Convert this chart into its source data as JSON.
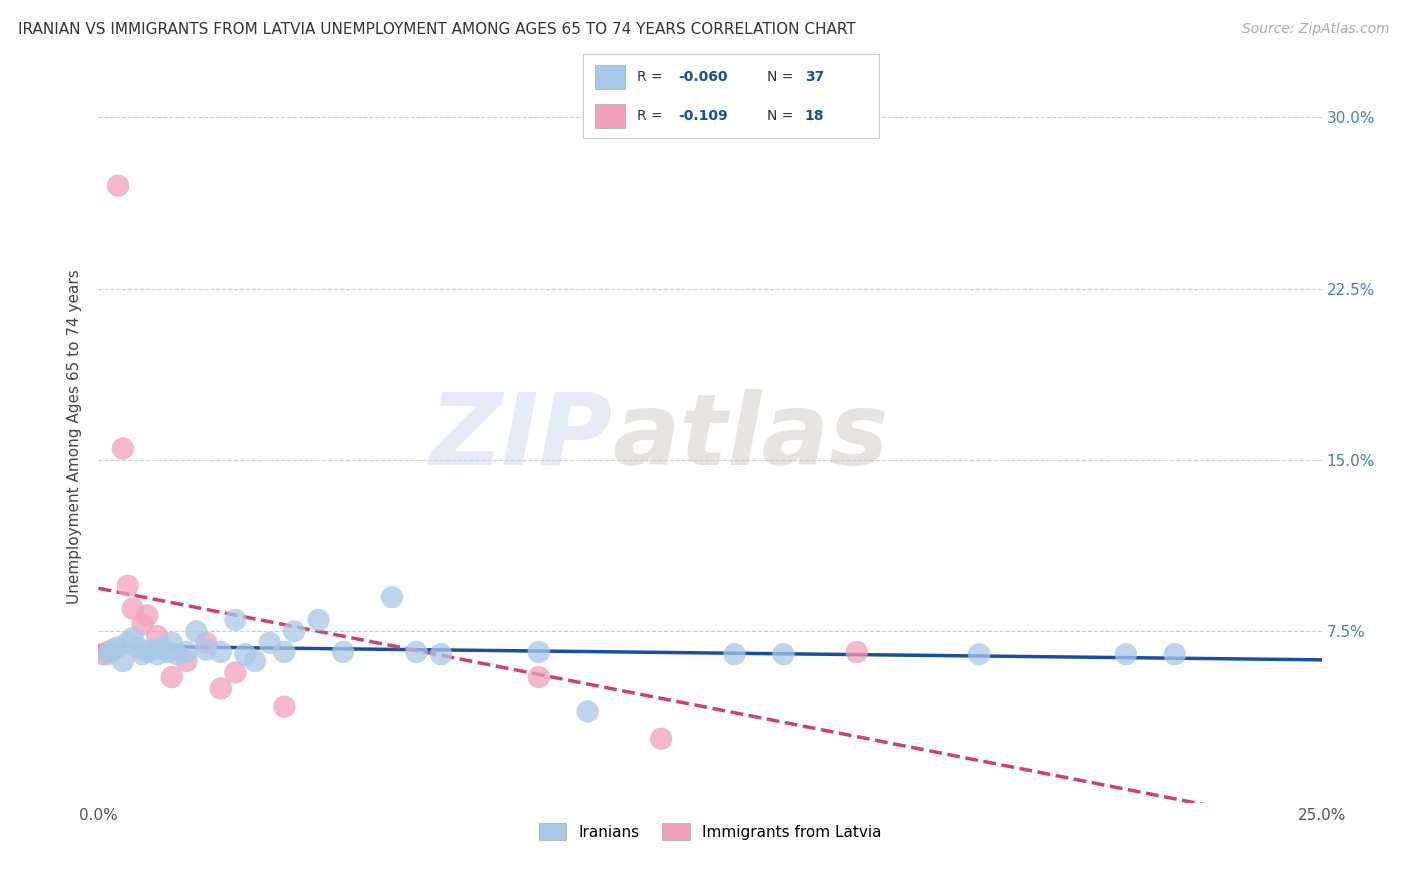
{
  "title": "IRANIAN VS IMMIGRANTS FROM LATVIA UNEMPLOYMENT AMONG AGES 65 TO 74 YEARS CORRELATION CHART",
  "source": "Source: ZipAtlas.com",
  "ylabel": "Unemployment Among Ages 65 to 74 years",
  "xlim": [
    0.0,
    0.25
  ],
  "ylim": [
    0.0,
    0.32
  ],
  "yticks": [
    0.0,
    0.075,
    0.15,
    0.225,
    0.3
  ],
  "ytick_labels_right": [
    "",
    "7.5%",
    "15.0%",
    "22.5%",
    "30.0%"
  ],
  "xticks": [
    0.0,
    0.05,
    0.1,
    0.15,
    0.2,
    0.25
  ],
  "xtick_labels": [
    "0.0%",
    "",
    "",
    "",
    "",
    "25.0%"
  ],
  "background_color": "#ffffff",
  "grid_color": "#cccccc",
  "iranians_color": "#a8c8e8",
  "latvians_color": "#f0a0b8",
  "iranians_line_color": "#1a4fa0",
  "latvians_line_color": "#d04070",
  "tick_label_color": "#4080c0",
  "iranians_R": -0.06,
  "iranians_N": 37,
  "latvians_R": -0.109,
  "latvians_N": 18,
  "watermark_zip": "ZIP",
  "watermark_atlas": "atlas",
  "iranians_x": [
    0.002,
    0.003,
    0.004,
    0.005,
    0.006,
    0.007,
    0.008,
    0.009,
    0.01,
    0.011,
    0.012,
    0.013,
    0.014,
    0.015,
    0.016,
    0.018,
    0.02,
    0.022,
    0.025,
    0.028,
    0.03,
    0.032,
    0.035,
    0.038,
    0.04,
    0.045,
    0.05,
    0.06,
    0.065,
    0.07,
    0.09,
    0.1,
    0.13,
    0.14,
    0.18,
    0.21,
    0.22
  ],
  "iranians_y": [
    0.065,
    0.067,
    0.068,
    0.062,
    0.07,
    0.072,
    0.068,
    0.065,
    0.066,
    0.067,
    0.065,
    0.068,
    0.066,
    0.07,
    0.065,
    0.066,
    0.075,
    0.067,
    0.066,
    0.08,
    0.065,
    0.062,
    0.07,
    0.066,
    0.075,
    0.08,
    0.066,
    0.09,
    0.066,
    0.065,
    0.066,
    0.04,
    0.065,
    0.065,
    0.065,
    0.065,
    0.065
  ],
  "latvians_x": [
    0.001,
    0.002,
    0.004,
    0.005,
    0.006,
    0.007,
    0.009,
    0.01,
    0.012,
    0.015,
    0.018,
    0.022,
    0.025,
    0.028,
    0.038,
    0.09,
    0.115,
    0.155
  ],
  "latvians_y": [
    0.065,
    0.066,
    0.27,
    0.155,
    0.095,
    0.085,
    0.078,
    0.082,
    0.073,
    0.055,
    0.062,
    0.07,
    0.05,
    0.057,
    0.042,
    0.055,
    0.028,
    0.066
  ]
}
